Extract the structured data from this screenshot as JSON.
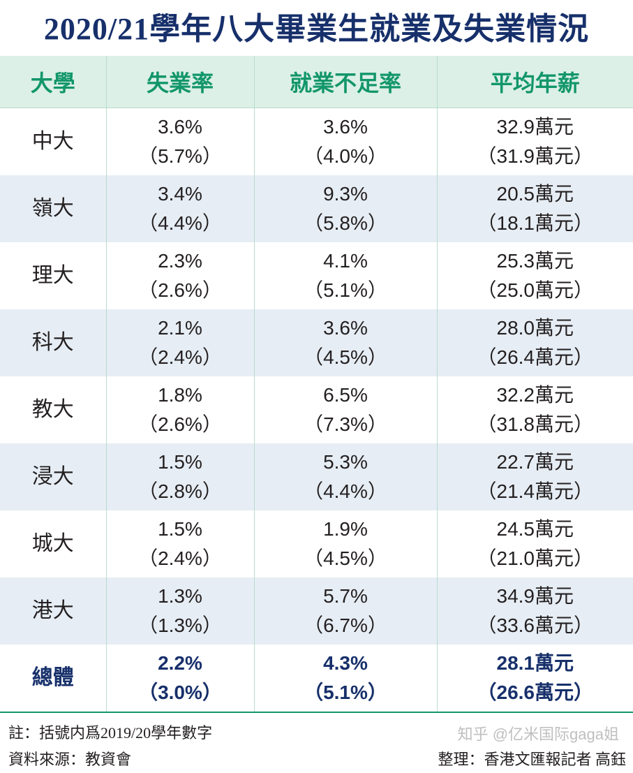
{
  "title": "2020/21學年八大畢業生就業及失業情況",
  "table": {
    "headers": [
      "大學",
      "失業率",
      "就業不足率",
      "平均年薪"
    ],
    "rows": [
      {
        "university": "中大",
        "unemployment": "3.6%",
        "unemployment_prev": "（5.7%）",
        "underemployment": "3.6%",
        "underemployment_prev": "（4.0%）",
        "salary": "32.9萬元",
        "salary_prev": "（31.9萬元）"
      },
      {
        "university": "嶺大",
        "unemployment": "3.4%",
        "unemployment_prev": "（4.4%）",
        "underemployment": "9.3%",
        "underemployment_prev": "（5.8%）",
        "salary": "20.5萬元",
        "salary_prev": "（18.1萬元）"
      },
      {
        "university": "理大",
        "unemployment": "2.3%",
        "unemployment_prev": "（2.6%）",
        "underemployment": "4.1%",
        "underemployment_prev": "（5.1%）",
        "salary": "25.3萬元",
        "salary_prev": "（25.0萬元）"
      },
      {
        "university": "科大",
        "unemployment": "2.1%",
        "unemployment_prev": "（2.4%）",
        "underemployment": "3.6%",
        "underemployment_prev": "（4.5%）",
        "salary": "28.0萬元",
        "salary_prev": "（26.4萬元）"
      },
      {
        "university": "教大",
        "unemployment": "1.8%",
        "unemployment_prev": "（2.6%）",
        "underemployment": "6.5%",
        "underemployment_prev": "（7.3%）",
        "salary": "32.2萬元",
        "salary_prev": "（31.8萬元）"
      },
      {
        "university": "浸大",
        "unemployment": "1.5%",
        "unemployment_prev": "（2.8%）",
        "underemployment": "5.3%",
        "underemployment_prev": "（4.4%）",
        "salary": "22.7萬元",
        "salary_prev": "（21.4萬元）"
      },
      {
        "university": "城大",
        "unemployment": "1.5%",
        "unemployment_prev": "（2.4%）",
        "underemployment": "1.9%",
        "underemployment_prev": "（4.5%）",
        "salary": "24.5萬元",
        "salary_prev": "（21.0萬元）"
      },
      {
        "university": "港大",
        "unemployment": "1.3%",
        "unemployment_prev": "（1.3%）",
        "underemployment": "5.7%",
        "underemployment_prev": "（6.7%）",
        "salary": "34.9萬元",
        "salary_prev": "（33.6萬元）"
      }
    ],
    "total": {
      "university": "總體",
      "unemployment": "2.2%",
      "unemployment_prev": "（3.0%）",
      "underemployment": "4.3%",
      "underemployment_prev": "（5.1%）",
      "salary": "28.1萬元",
      "salary_prev": "（26.6萬元）"
    }
  },
  "footer": {
    "note": "註：括號内爲2019/20學年數字",
    "source": "資料來源：教資會",
    "editor": "整理：香港文匯報記者 高鈺",
    "watermark": "知乎 @亿米国际gaga姐"
  },
  "colors": {
    "title": "#17306b",
    "header_text": "#12966a",
    "header_bg": "#dcf0e8",
    "stripe_bg": "#e6edf4",
    "total_text": "#17306b"
  }
}
